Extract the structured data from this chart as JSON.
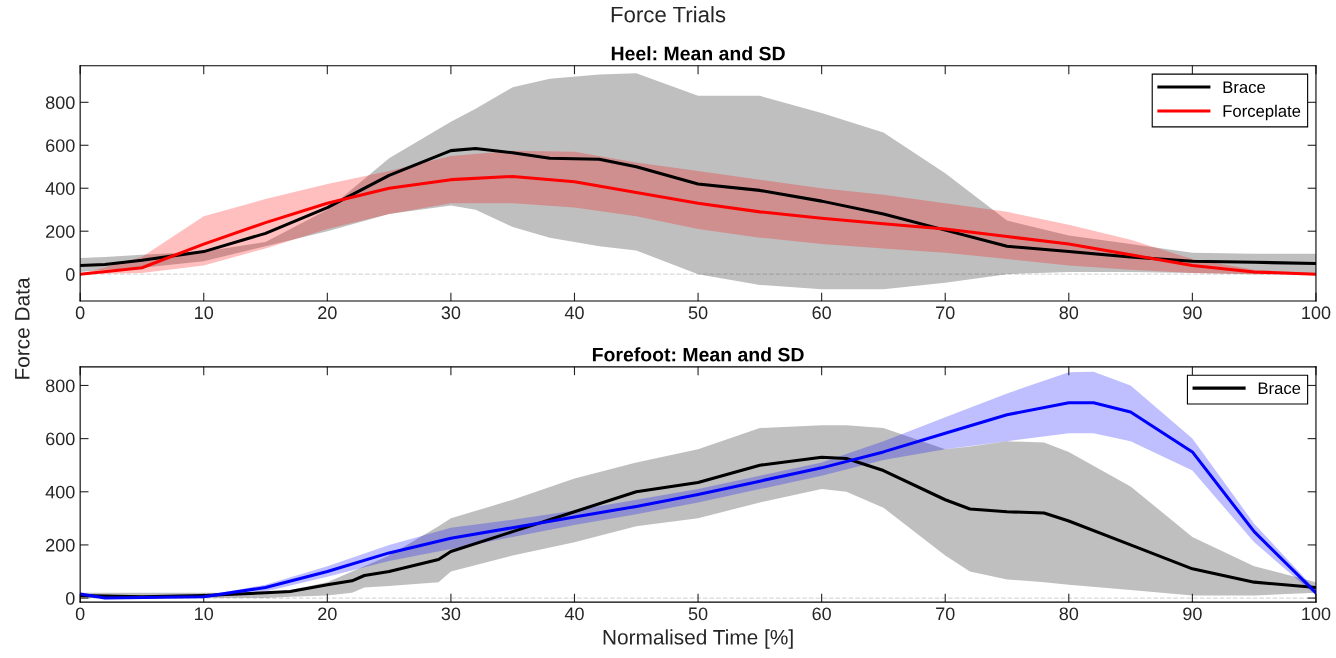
{
  "chart_data": [
    {
      "type": "line",
      "title": "Heel: Mean and SD",
      "annotations": [
        "Force Trials"
      ],
      "ylabel": "Force Data",
      "xlim": [
        0,
        100
      ],
      "xticks": [
        0,
        10,
        20,
        30,
        40,
        50,
        60,
        70,
        80,
        90,
        100
      ],
      "ylim": [
        -125,
        970
      ],
      "yticks": [
        0,
        200,
        400,
        600,
        800
      ],
      "grid": false,
      "legend": "top right",
      "line_style": "solid",
      "ref_lines": [
        {
          "axis": "y",
          "value": 0,
          "label": null,
          "color": "#d9d9d9",
          "line_style": "dashed"
        }
      ],
      "series": [
        {
          "name": "Brace",
          "color": "#000000",
          "x": [
            0,
            2,
            5,
            10,
            15,
            20,
            25,
            30,
            32,
            35,
            38,
            42,
            45,
            50,
            55,
            60,
            65,
            70,
            75,
            80,
            85,
            90,
            95,
            100
          ],
          "values": [
            40,
            45,
            65,
            105,
            190,
            310,
            460,
            575,
            585,
            565,
            540,
            535,
            500,
            420,
            390,
            340,
            280,
            205,
            130,
            105,
            80,
            60,
            55,
            50
          ],
          "lower": [
            10,
            20,
            30,
            60,
            130,
            200,
            280,
            320,
            300,
            220,
            170,
            130,
            110,
            0,
            -50,
            -70,
            -70,
            -40,
            0,
            10,
            10,
            5,
            0,
            0
          ],
          "upper": [
            75,
            80,
            90,
            105,
            150,
            300,
            540,
            710,
            770,
            870,
            910,
            930,
            935,
            830,
            830,
            750,
            660,
            470,
            250,
            180,
            140,
            100,
            95,
            95
          ]
        },
        {
          "name": "Forceplate",
          "color": "#ff0000",
          "x": [
            0,
            5,
            10,
            15,
            20,
            25,
            30,
            35,
            40,
            45,
            50,
            55,
            60,
            65,
            70,
            75,
            80,
            85,
            90,
            95,
            100
          ],
          "values": [
            0,
            30,
            140,
            240,
            330,
            400,
            440,
            455,
            430,
            380,
            330,
            290,
            260,
            235,
            210,
            175,
            140,
            90,
            40,
            10,
            0
          ],
          "lower": [
            0,
            5,
            40,
            120,
            210,
            280,
            330,
            330,
            310,
            270,
            210,
            170,
            140,
            120,
            100,
            70,
            40,
            20,
            5,
            0,
            0
          ],
          "upper": [
            0,
            80,
            270,
            350,
            420,
            480,
            550,
            575,
            570,
            520,
            480,
            440,
            400,
            370,
            330,
            290,
            230,
            160,
            70,
            20,
            5
          ]
        }
      ]
    },
    {
      "type": "line",
      "title": "Forefoot: Mean and SD",
      "xlabel": "Normalised Time [%]",
      "xlim": [
        0,
        100
      ],
      "xticks": [
        0,
        10,
        20,
        30,
        40,
        50,
        60,
        70,
        80,
        90,
        100
      ],
      "ylim": [
        -15,
        870
      ],
      "yticks": [
        0,
        200,
        400,
        600,
        800
      ],
      "grid": false,
      "legend": "top right",
      "line_style": "solid",
      "ref_lines": [
        {
          "axis": "y",
          "value": 0,
          "label": null,
          "color": "#d9d9d9",
          "line_style": "dashed"
        }
      ],
      "series": [
        {
          "name": "Brace",
          "color": "#000000",
          "x": [
            0,
            5,
            10,
            15,
            17,
            20,
            22,
            23,
            25,
            29,
            30,
            35,
            40,
            45,
            50,
            55,
            60,
            62,
            65,
            70,
            72,
            75,
            78,
            80,
            85,
            90,
            95,
            100
          ],
          "values": [
            10,
            5,
            10,
            20,
            25,
            50,
            65,
            85,
            100,
            145,
            175,
            250,
            325,
            400,
            435,
            500,
            530,
            525,
            480,
            370,
            335,
            325,
            320,
            290,
            200,
            110,
            60,
            40
          ],
          "lower": [
            0,
            0,
            0,
            0,
            5,
            10,
            20,
            40,
            45,
            60,
            100,
            160,
            210,
            270,
            300,
            360,
            410,
            400,
            340,
            160,
            100,
            70,
            60,
            50,
            30,
            10,
            10,
            20
          ],
          "upper": [
            20,
            20,
            20,
            20,
            30,
            60,
            100,
            120,
            160,
            270,
            300,
            370,
            450,
            510,
            560,
            640,
            650,
            650,
            640,
            560,
            570,
            590,
            585,
            550,
            420,
            230,
            120,
            60
          ]
        },
        {
          "color": "#0000ff",
          "x": [
            0,
            2,
            10,
            15,
            20,
            25,
            30,
            35,
            40,
            45,
            50,
            55,
            60,
            65,
            70,
            75,
            80,
            82,
            85,
            90,
            95,
            100
          ],
          "values": [
            15,
            0,
            5,
            40,
            100,
            170,
            225,
            265,
            305,
            345,
            390,
            440,
            490,
            550,
            620,
            690,
            735,
            735,
            700,
            550,
            250,
            20
          ],
          "lower": [
            5,
            0,
            0,
            25,
            80,
            140,
            185,
            230,
            275,
            315,
            360,
            410,
            460,
            520,
            560,
            590,
            620,
            620,
            590,
            480,
            210,
            10
          ],
          "upper": [
            15,
            10,
            10,
            50,
            120,
            200,
            265,
            295,
            330,
            370,
            410,
            460,
            510,
            590,
            680,
            770,
            850,
            852,
            800,
            600,
            280,
            30
          ]
        }
      ]
    }
  ]
}
